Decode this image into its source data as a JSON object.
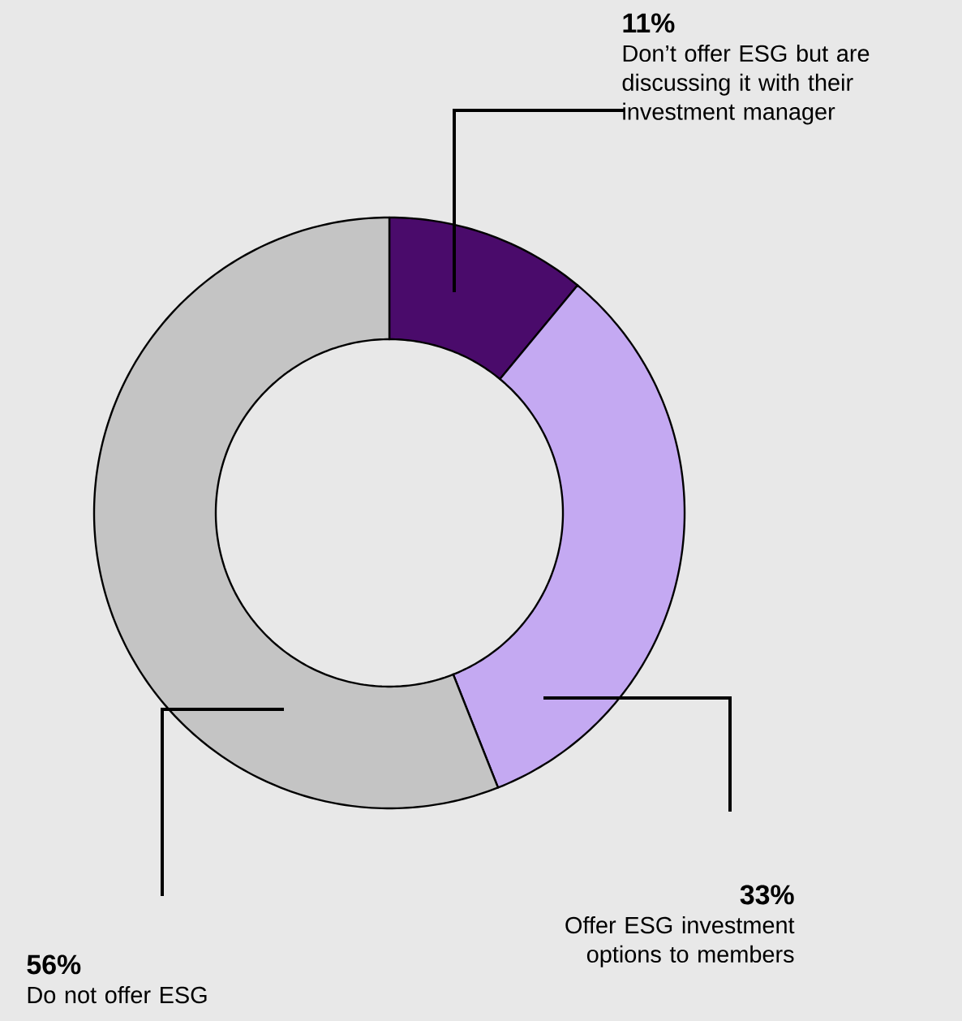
{
  "chart_data": {
    "type": "donut",
    "categories": [
      "Don’t offer ESG but are discussing it with their investment manager",
      "Offer ESG investment options to members",
      "Do not offer ESG"
    ],
    "values": [
      11,
      33,
      56
    ],
    "value_labels": [
      "11%",
      "33%",
      "56%"
    ],
    "colors": [
      "#4a0b6b",
      "#c4a9f2",
      "#c4c4c4"
    ]
  }
}
